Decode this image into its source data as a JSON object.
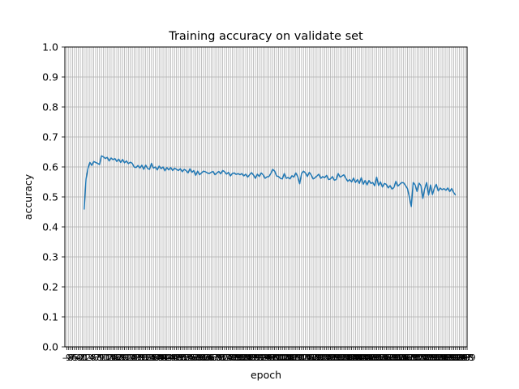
{
  "chart_data": {
    "type": "line",
    "title": "Training accuracy on validate set",
    "xlabel": "epoch",
    "ylabel": "accuracy",
    "xlim": [
      -10,
      199
    ],
    "ylim": [
      0.0,
      1.0
    ],
    "grid": true,
    "y_ticks": [
      "0.0",
      "0.1",
      "0.2",
      "0.3",
      "0.4",
      "0.5",
      "0.6",
      "0.7",
      "0.8",
      "0.9",
      "1.0"
    ],
    "x_tick_start": -9,
    "x_tick_end": 199,
    "series": [
      {
        "color": "#1f77b4",
        "x_start": 0,
        "values": [
          0.458,
          0.56,
          0.595,
          0.615,
          0.605,
          0.618,
          0.615,
          0.612,
          0.608,
          0.637,
          0.634,
          0.628,
          0.632,
          0.62,
          0.63,
          0.624,
          0.628,
          0.618,
          0.626,
          0.615,
          0.625,
          0.614,
          0.62,
          0.611,
          0.616,
          0.612,
          0.6,
          0.598,
          0.605,
          0.596,
          0.606,
          0.592,
          0.606,
          0.595,
          0.592,
          0.612,
          0.596,
          0.6,
          0.59,
          0.603,
          0.594,
          0.6,
          0.587,
          0.598,
          0.59,
          0.598,
          0.588,
          0.596,
          0.592,
          0.588,
          0.594,
          0.584,
          0.592,
          0.588,
          0.58,
          0.594,
          0.582,
          0.588,
          0.572,
          0.586,
          0.574,
          0.58,
          0.586,
          0.584,
          0.58,
          0.578,
          0.582,
          0.585,
          0.574,
          0.58,
          0.585,
          0.577,
          0.588,
          0.584,
          0.576,
          0.582,
          0.57,
          0.578,
          0.58,
          0.575,
          0.578,
          0.574,
          0.578,
          0.57,
          0.576,
          0.566,
          0.574,
          0.581,
          0.573,
          0.562,
          0.576,
          0.568,
          0.58,
          0.574,
          0.562,
          0.567,
          0.568,
          0.578,
          0.592,
          0.586,
          0.57,
          0.568,
          0.562,
          0.56,
          0.578,
          0.562,
          0.565,
          0.56,
          0.571,
          0.566,
          0.58,
          0.568,
          0.544,
          0.578,
          0.586,
          0.58,
          0.568,
          0.582,
          0.573,
          0.56,
          0.564,
          0.57,
          0.576,
          0.562,
          0.568,
          0.564,
          0.572,
          0.558,
          0.56,
          0.568,
          0.556,
          0.558,
          0.578,
          0.566,
          0.57,
          0.574,
          0.562,
          0.552,
          0.558,
          0.55,
          0.563,
          0.548,
          0.558,
          0.545,
          0.564,
          0.542,
          0.555,
          0.54,
          0.555,
          0.545,
          0.548,
          0.537,
          0.566,
          0.538,
          0.55,
          0.533,
          0.545,
          0.542,
          0.53,
          0.538,
          0.526,
          0.532,
          0.552,
          0.536,
          0.542,
          0.548,
          0.547,
          0.538,
          0.528,
          0.5,
          0.468,
          0.548,
          0.54,
          0.518,
          0.546,
          0.538,
          0.495,
          0.528,
          0.548,
          0.506,
          0.54,
          0.508,
          0.53,
          0.542,
          0.52,
          0.53,
          0.524,
          0.528,
          0.522,
          0.53,
          0.518,
          0.528,
          0.515,
          0.506
        ]
      }
    ]
  }
}
